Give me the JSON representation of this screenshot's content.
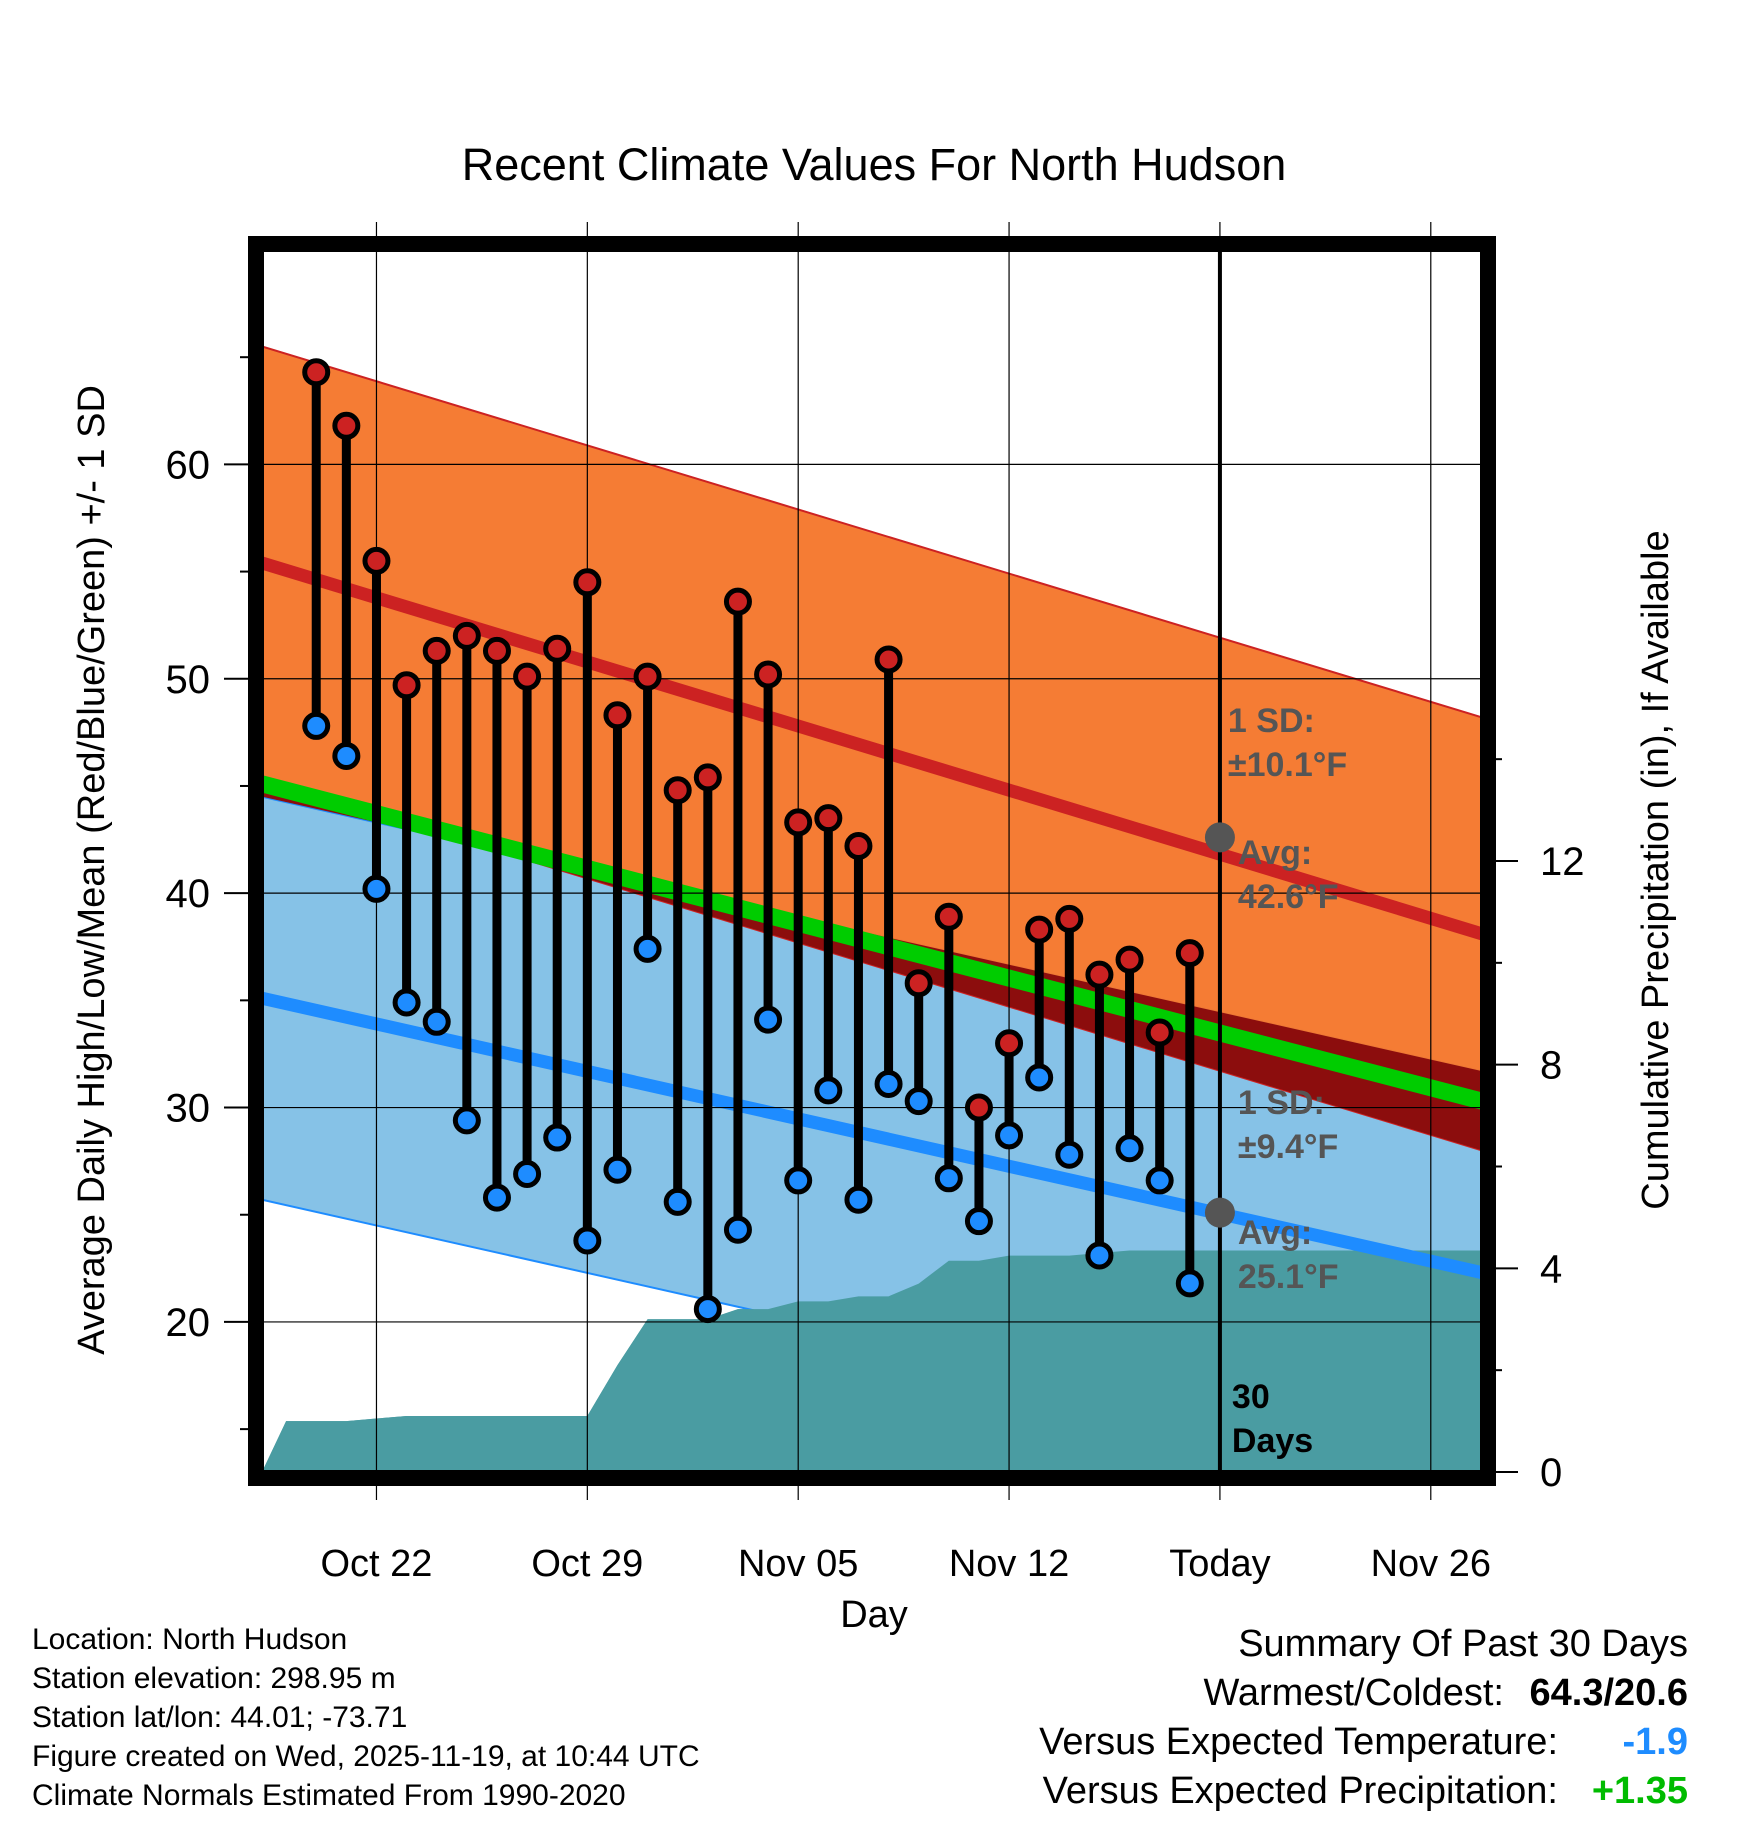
{
  "chart_data": {
    "type": "line",
    "title": "Recent Climate Values For North Hudson",
    "xlabel": "Day",
    "ylabel": "Average Daily High/Low/Mean (Red/Blue/Green) +/- 1 SD",
    "y2label": "Cumulative Precipitation (in), If Available",
    "xlim": [
      -0.8,
      39.7
    ],
    "ylim": [
      13,
      70
    ],
    "y2lim": [
      0,
      24
    ],
    "x_ticks": [
      {
        "x": 3,
        "label": "Oct 22"
      },
      {
        "x": 10,
        "label": "Oct 29"
      },
      {
        "x": 17,
        "label": "Nov 05"
      },
      {
        "x": 24,
        "label": "Nov 12"
      },
      {
        "x": 31,
        "label": "Today"
      },
      {
        "x": 38,
        "label": "Nov 26"
      }
    ],
    "y_ticks": [
      20,
      30,
      40,
      50,
      60
    ],
    "y_minor_ticks": [
      15,
      25,
      35,
      45,
      55,
      65
    ],
    "y2_ticks": [
      0,
      4,
      8,
      12
    ],
    "today_x": 31,
    "daily": {
      "x": [
        1,
        2,
        3,
        4,
        5,
        6,
        7,
        8,
        9,
        10,
        11,
        12,
        13,
        14,
        15,
        16,
        17,
        18,
        19,
        20,
        21,
        22,
        23,
        24,
        25,
        26,
        27,
        28,
        29,
        30
      ],
      "high": [
        64.3,
        61.8,
        55.5,
        49.7,
        51.3,
        52.0,
        51.3,
        50.1,
        51.4,
        54.5,
        48.3,
        50.1,
        44.8,
        45.4,
        53.6,
        50.2,
        43.3,
        43.5,
        42.2,
        50.9,
        35.8,
        38.9,
        30.0,
        33.0,
        38.3,
        38.8,
        36.2,
        36.9,
        33.5,
        37.2
      ],
      "low": [
        47.8,
        46.4,
        40.2,
        34.9,
        34.0,
        29.4,
        25.8,
        26.9,
        28.6,
        23.8,
        27.1,
        37.4,
        25.6,
        20.6,
        24.3,
        34.1,
        26.6,
        30.8,
        25.7,
        31.1,
        30.3,
        26.7,
        24.7,
        28.7,
        31.4,
        27.8,
        23.1,
        28.1,
        26.6,
        21.8
      ]
    },
    "normals": {
      "high_avg": [
        55.4,
        38.1
      ],
      "high_sd": 10.1,
      "low_avg": [
        35.1,
        22.3
      ],
      "low_sd": 9.4,
      "mean_avg": [
        45.1,
        30.3
      ],
      "x_range": [
        -0.8,
        39.7
      ]
    },
    "precip": {
      "x": [
        -0.8,
        0,
        1,
        2,
        3,
        4,
        5,
        6,
        7,
        8,
        9,
        10,
        11,
        12,
        13,
        14,
        15,
        16,
        17,
        18,
        19,
        20,
        21,
        22,
        23,
        24,
        25,
        26,
        27,
        28,
        29,
        30,
        31,
        39.7
      ],
      "y": [
        0,
        1.0,
        1.0,
        1.0,
        1.05,
        1.1,
        1.1,
        1.1,
        1.1,
        1.1,
        1.1,
        1.1,
        2.1,
        3.0,
        3.0,
        3.0,
        3.2,
        3.2,
        3.35,
        3.35,
        3.45,
        3.45,
        3.7,
        4.15,
        4.15,
        4.25,
        4.25,
        4.25,
        4.3,
        4.35,
        4.35,
        4.35,
        4.35,
        4.35
      ]
    },
    "annotations": {
      "high_sd_text": [
        "1 SD:",
        "±10.1°F"
      ],
      "high_avg_text": [
        "Avg:",
        "42.6°F"
      ],
      "high_avg_value": 42.6,
      "low_sd_text": [
        "1 SD:",
        "±9.4°F"
      ],
      "low_avg_text": [
        "Avg:",
        "25.1°F"
      ],
      "low_avg_value": 25.1,
      "days_text": [
        "30",
        "Days"
      ]
    },
    "colors": {
      "high_band": "#f5782d",
      "high_line": "#cc2222",
      "low_band": "#82c0e6",
      "low_line": "#1e8cff",
      "mean_line": "#00cc00",
      "overlap": "#8c0d0d",
      "precip": "#4a9ca2",
      "high_marker": "#cc2222",
      "low_marker": "#1e8cff",
      "annotation": "#555555"
    }
  },
  "footer": {
    "location": "Location: North Hudson",
    "elevation": "Station elevation: 298.95 m",
    "latlon": "Station lat/lon: 44.01; -73.71",
    "created": "Figure created on Wed, 2025-11-19, at 10:44 UTC",
    "normals": "Climate Normals Estimated From 1990-2020"
  },
  "summary": {
    "title": "Summary Of Past 30 Days",
    "warm_cold_label": "Warmest/Coldest:",
    "warm_cold_value": "64.3/20.6",
    "temp_label": "Versus Expected Temperature:",
    "temp_value": "-1.9",
    "temp_color": "#1e8cff",
    "precip_label": "Versus Expected Precipitation:",
    "precip_value": "+1.35",
    "precip_color": "#00bb00"
  }
}
